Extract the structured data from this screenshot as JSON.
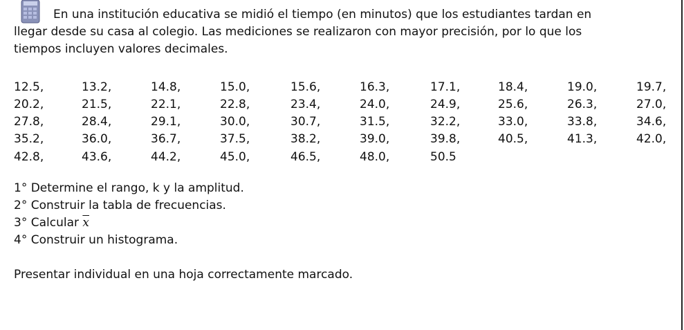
{
  "intro": {
    "line1": "En una institución educativa se midió el tiempo (en minutos) que los estudiantes tardan en",
    "line2": "llegar desde su casa al colegio. Las mediciones se realizaron con mayor precisión, por lo que los",
    "line3": "tiempos incluyen valores decimales."
  },
  "icon": "calculator-icon",
  "data_rows": [
    [
      "12.5,",
      "13.2,",
      "14.8,",
      "15.0,",
      "15.6,",
      "16.3,",
      "17.1,",
      "18.4,",
      "19.0,",
      "19.7,"
    ],
    [
      "20.2,",
      "21.5,",
      "22.1,",
      "22.8,",
      "23.4,",
      "24.0,",
      "24.9,",
      "25.6,",
      "26.3,",
      "27.0,"
    ],
    [
      "27.8,",
      "28.4,",
      "29.1,",
      "30.0,",
      "30.7,",
      "31.5,",
      "32.2,",
      "33.0,",
      "33.8,",
      "34.6,"
    ],
    [
      "35.2,",
      "36.0,",
      "36.7,",
      "37.5,",
      "38.2,",
      "39.0,",
      "39.8,",
      "40.5,",
      "41.3,",
      "42.0,"
    ],
    [
      "42.8,",
      "43.6,",
      "44.2,",
      "45.0,",
      "46.5,",
      "48.0,",
      "50.5"
    ]
  ],
  "tasks": [
    "1° Determine el rango, k y la amplitud.",
    "2° Construir la tabla de frecuencias.",
    "3° Calcular ",
    "4° Construir un histograma."
  ],
  "xbar_symbol": "x",
  "footer": "Presentar individual en una hoja correctamente marcado."
}
